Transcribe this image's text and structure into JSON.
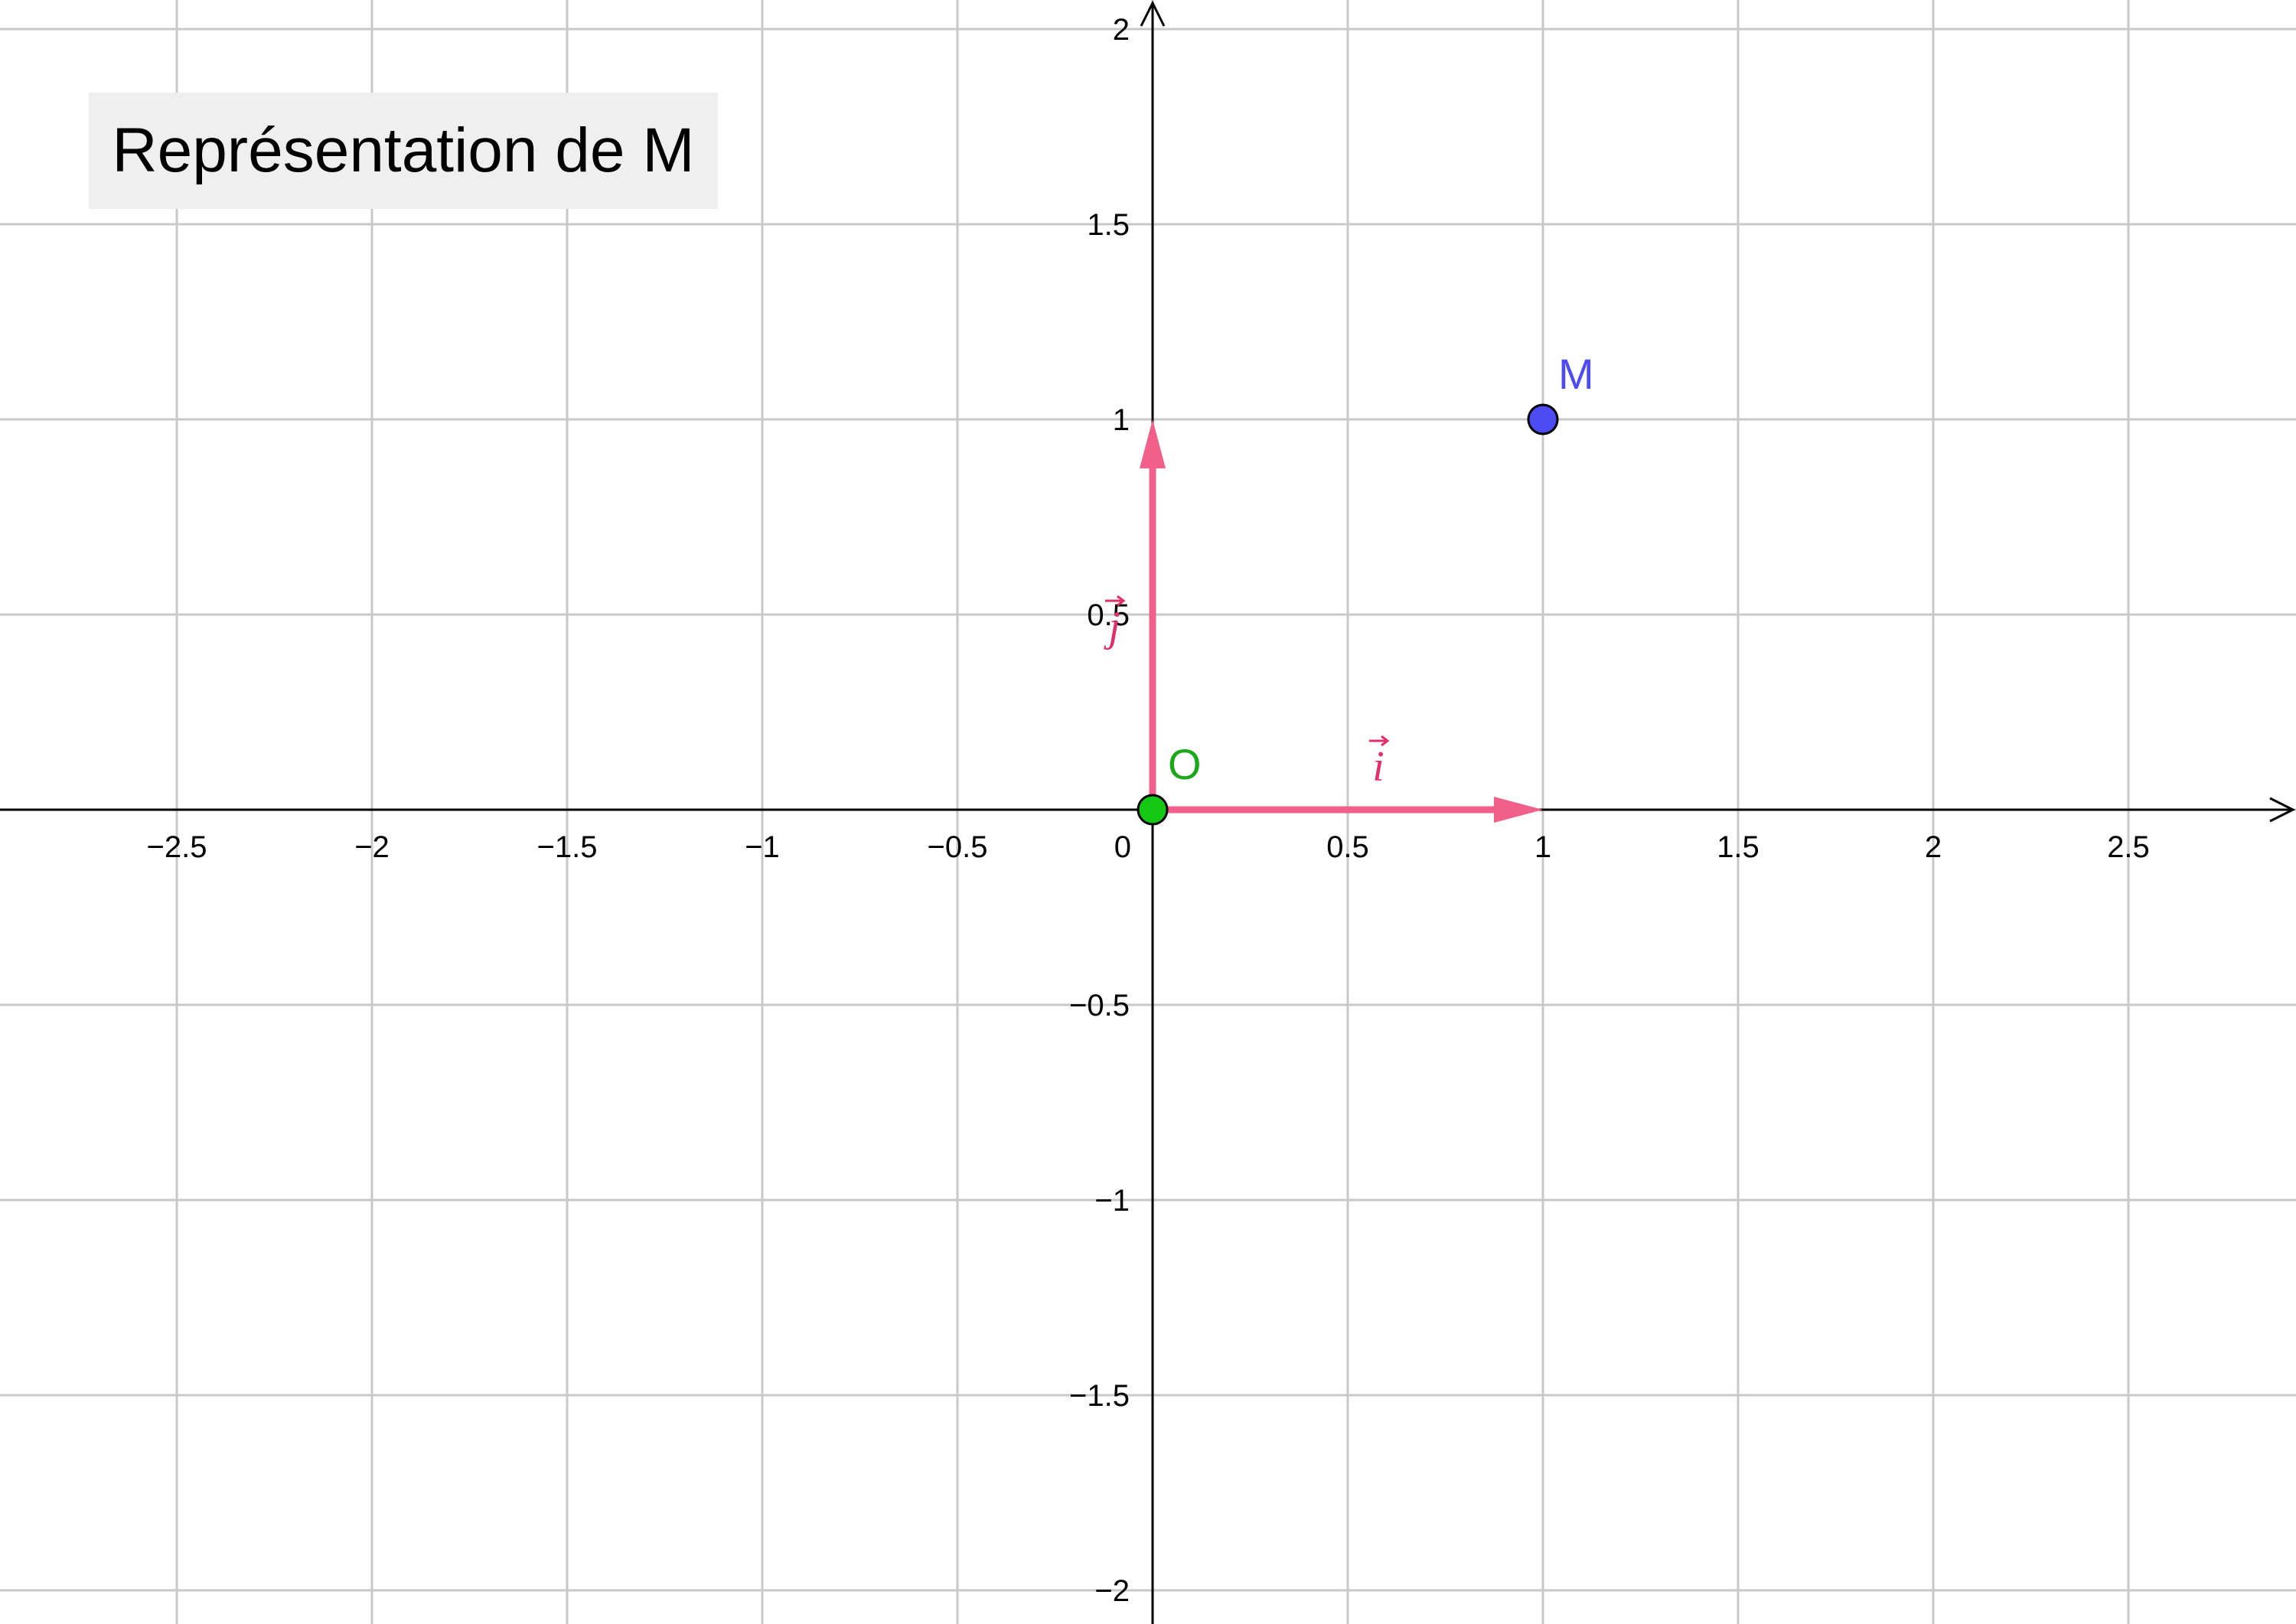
{
  "title": "Représentation de M",
  "colors": {
    "grid": "#c8c8c8",
    "axis": "#000000",
    "vector": "#f0608a",
    "vector_label": "#e0306a",
    "origin_fill": "#14c814",
    "origin_label": "#1aa81a",
    "point_m_fill": "#4c4cf2",
    "point_m_label": "#4c4cf2",
    "background": "#ffffff",
    "title_background": "#efefef"
  },
  "axes": {
    "x_range": [
      -2.95,
      2.95
    ],
    "y_range": [
      -2.08,
      2.08
    ],
    "grid_step": 0.5,
    "x_ticks": [
      {
        "value": -2.5,
        "label": "−2.5"
      },
      {
        "value": -2,
        "label": "−2"
      },
      {
        "value": -1.5,
        "label": "−1.5"
      },
      {
        "value": -1,
        "label": "−1"
      },
      {
        "value": -0.5,
        "label": "−0.5"
      },
      {
        "value": 0,
        "label": "0"
      },
      {
        "value": 0.5,
        "label": "0.5"
      },
      {
        "value": 1,
        "label": "1"
      },
      {
        "value": 1.5,
        "label": "1.5"
      },
      {
        "value": 2,
        "label": "2"
      },
      {
        "value": 2.5,
        "label": "2.5"
      }
    ],
    "y_ticks": [
      {
        "value": 2,
        "label": "2"
      },
      {
        "value": 1.5,
        "label": "1.5"
      },
      {
        "value": 1,
        "label": "1"
      },
      {
        "value": 0.5,
        "label": "0.5"
      },
      {
        "value": -0.5,
        "label": "−0.5"
      },
      {
        "value": -1,
        "label": "−1"
      },
      {
        "value": -1.5,
        "label": "−1.5"
      },
      {
        "value": -2,
        "label": "−2"
      }
    ]
  },
  "points": [
    {
      "id": "origin",
      "label": "O",
      "x": 0,
      "y": 0,
      "fill_key": "origin_fill",
      "label_key": "origin_label"
    },
    {
      "id": "m",
      "label": "M",
      "x": 1,
      "y": 1,
      "fill_key": "point_m_fill",
      "label_key": "point_m_label"
    }
  ],
  "vectors": [
    {
      "id": "i",
      "label": "i",
      "from": [
        0,
        0
      ],
      "to": [
        1,
        0
      ]
    },
    {
      "id": "j",
      "label": "j",
      "from": [
        0,
        0
      ],
      "to": [
        0,
        1
      ]
    }
  ]
}
